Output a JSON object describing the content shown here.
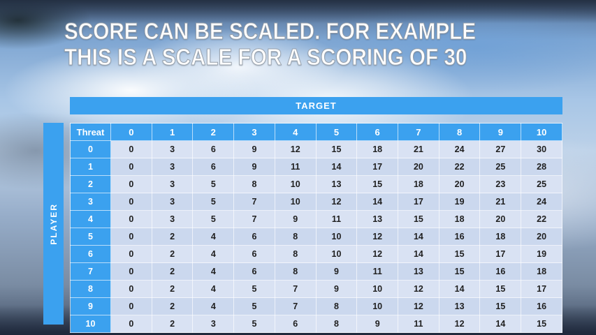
{
  "title": {
    "line1": "SCORE CAN BE SCALED. FOR EXAMPLE",
    "line2": "THIS IS A SCALE FOR A SCORING OF 30"
  },
  "table": {
    "target_label": "TARGET",
    "player_label": "PLAYER",
    "corner_label": "Threat",
    "column_headers": [
      "0",
      "1",
      "2",
      "3",
      "4",
      "5",
      "6",
      "7",
      "8",
      "9",
      "10"
    ],
    "rows": [
      {
        "label": "0",
        "values": [
          0,
          3,
          6,
          9,
          12,
          15,
          18,
          21,
          24,
          27,
          30
        ]
      },
      {
        "label": "1",
        "values": [
          0,
          3,
          6,
          9,
          11,
          14,
          17,
          20,
          22,
          25,
          28
        ]
      },
      {
        "label": "2",
        "values": [
          0,
          3,
          5,
          8,
          10,
          13,
          15,
          18,
          20,
          23,
          25
        ]
      },
      {
        "label": "3",
        "values": [
          0,
          3,
          5,
          7,
          10,
          12,
          14,
          17,
          19,
          21,
          24
        ]
      },
      {
        "label": "4",
        "values": [
          0,
          3,
          5,
          7,
          9,
          11,
          13,
          15,
          18,
          20,
          22
        ]
      },
      {
        "label": "5",
        "values": [
          0,
          2,
          4,
          6,
          8,
          10,
          12,
          14,
          16,
          18,
          20
        ]
      },
      {
        "label": "6",
        "values": [
          0,
          2,
          4,
          6,
          8,
          10,
          12,
          14,
          15,
          17,
          19
        ]
      },
      {
        "label": "7",
        "values": [
          0,
          2,
          4,
          6,
          8,
          9,
          11,
          13,
          15,
          16,
          18
        ]
      },
      {
        "label": "8",
        "values": [
          0,
          2,
          4,
          5,
          7,
          9,
          10,
          12,
          14,
          15,
          17
        ]
      },
      {
        "label": "9",
        "values": [
          0,
          2,
          4,
          5,
          7,
          8,
          10,
          12,
          13,
          15,
          16
        ]
      },
      {
        "label": "10",
        "values": [
          0,
          2,
          3,
          5,
          6,
          8,
          9,
          11,
          12,
          14,
          15
        ]
      }
    ]
  },
  "colors": {
    "accent_blue": "#3ba1ef",
    "row_light": "#d9e2f3",
    "row_dark": "#cbd8ee",
    "body_text": "#1f1f1f",
    "header_text": "#ffffff"
  }
}
